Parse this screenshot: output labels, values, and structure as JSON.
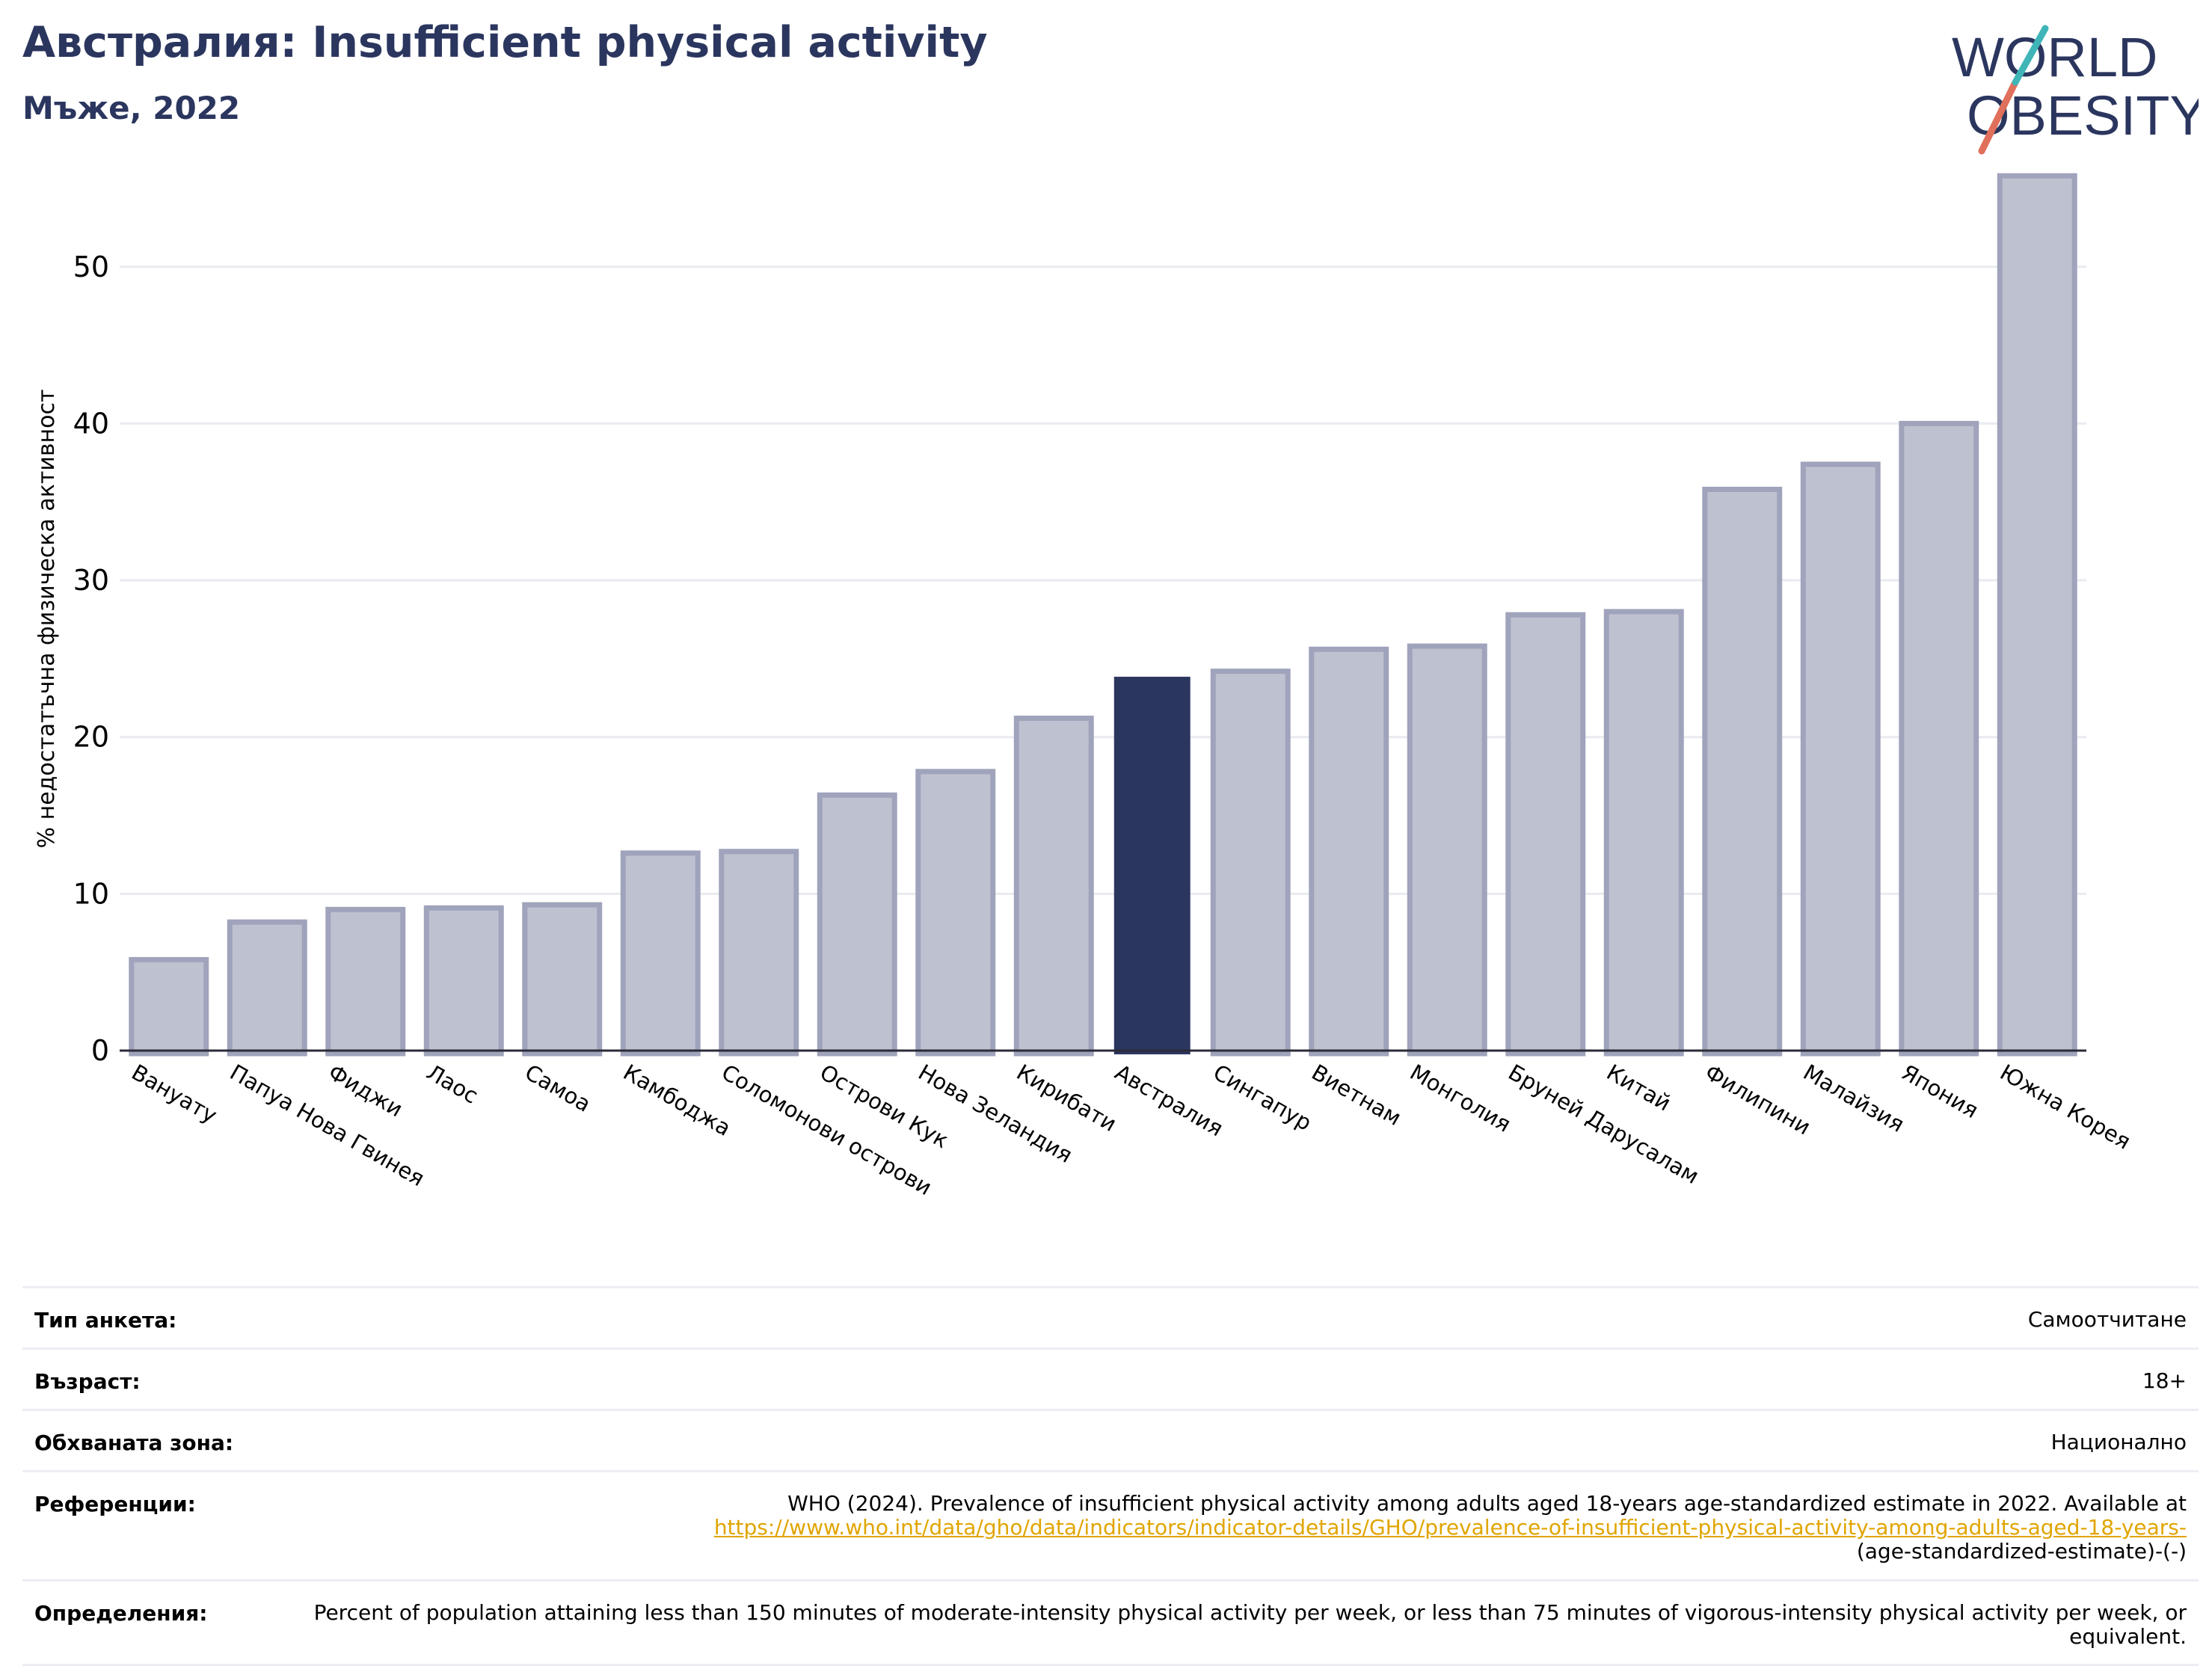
{
  "header": {
    "title": "Австралия: Insufficient physical activity",
    "subtitle": "Мъже, 2022"
  },
  "logo": {
    "line1": "WORLD",
    "line2": "OBESITY"
  },
  "colors": {
    "highlight": "#2b365f",
    "bar": "#bec1cf",
    "bar_edge": "#9fa3bb",
    "title": "#2b365f",
    "link": "#e0a500"
  },
  "chart_data": {
    "type": "bar",
    "title": "Австралия: Insufficient physical activity",
    "subtitle": "Мъже, 2022",
    "xlabel": "",
    "ylabel": "% недостатъчна физическа активност",
    "ylim": [
      0,
      57
    ],
    "yticks": [
      0,
      10,
      20,
      30,
      40,
      50
    ],
    "grid": true,
    "highlight": "Австралия",
    "categories": [
      "Вануату",
      "Папуа Нова Гвинея",
      "Фиджи",
      "Лаос",
      "Самоа",
      "Камбоджа",
      "Соломонови острови",
      "Острови Кук",
      "Нова Зеландия",
      "Кирибати",
      "Австралия",
      "Сингапур",
      "Виетнам",
      "Монголия",
      "Бруней Дарусалам",
      "Китай",
      "Филипини",
      "Малайзия",
      "Япония",
      "Южна Корея"
    ],
    "values": [
      5.8,
      8.2,
      9.0,
      9.1,
      9.3,
      12.6,
      12.7,
      16.3,
      17.8,
      21.2,
      23.8,
      24.2,
      25.6,
      25.8,
      27.8,
      28.0,
      35.8,
      37.4,
      40.0,
      55.8
    ]
  },
  "info": {
    "survey_type_label": "Тип анкета:",
    "survey_type_value": "Самоотчитане",
    "age_label": "Възраст:",
    "age_value": "18+",
    "coverage_label": "Обхваната зона:",
    "coverage_value": "Национално",
    "references_label": "Референции:",
    "references_text": "WHO (2024). Prevalence of insufficient physical activity among adults aged 18-years age-standardized estimate in 2022. Available at",
    "references_link": "https://www.who.int/data/gho/data/indicators/indicator-details/GHO/prevalence-of-insufficient-physical-activity-among-adults-aged-18-years-",
    "references_tail": "(age-standardized-estimate)-(-)",
    "definitions_label": "Определения:",
    "definitions_value": "Percent of population attaining less than 150 minutes of moderate-intensity physical activity per week, or less than 75 minutes of vigorous-intensity physical activity per week, or equivalent."
  }
}
